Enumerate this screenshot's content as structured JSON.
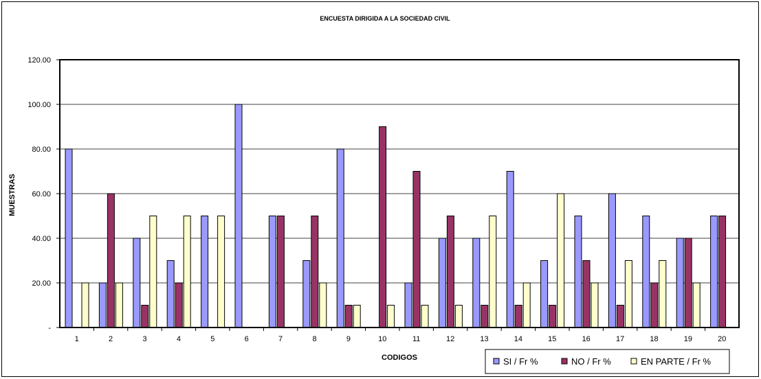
{
  "chart_data": {
    "type": "bar",
    "title": "ENCUESTA DIRIGIDA A LA SOCIEDAD CIVIL",
    "xlabel": "CODIGOS",
    "ylabel": "MUESTRAS",
    "ylim": [
      0,
      120
    ],
    "yticks": [
      0,
      20,
      40,
      60,
      80,
      100,
      120
    ],
    "ytick_labels": [
      "-",
      "20.00",
      "40.00",
      "60.00",
      "80.00",
      "100.00",
      "120.00"
    ],
    "grid": true,
    "legend_position": "bottom-right",
    "categories": [
      "1",
      "2",
      "3",
      "4",
      "5",
      "6",
      "7",
      "8",
      "9",
      "10",
      "11",
      "12",
      "13",
      "14",
      "15",
      "16",
      "17",
      "18",
      "19",
      "20"
    ],
    "series": [
      {
        "name": "SI / Fr %",
        "color": "#9999ff",
        "values": [
          80,
          20,
          40,
          30,
          50,
          100,
          50,
          30,
          80,
          0,
          20,
          40,
          40,
          70,
          30,
          50,
          60,
          50,
          40,
          50
        ]
      },
      {
        "name": "NO / Fr %",
        "color": "#993366",
        "values": [
          0,
          60,
          10,
          20,
          0,
          0,
          50,
          50,
          10,
          90,
          70,
          50,
          10,
          10,
          10,
          30,
          10,
          20,
          40,
          50
        ]
      },
      {
        "name": "EN PARTE / Fr %",
        "color": "#ffffcc",
        "values": [
          20,
          20,
          50,
          50,
          50,
          0,
          0,
          20,
          10,
          10,
          10,
          10,
          50,
          20,
          60,
          20,
          30,
          30,
          20,
          0
        ]
      }
    ]
  }
}
